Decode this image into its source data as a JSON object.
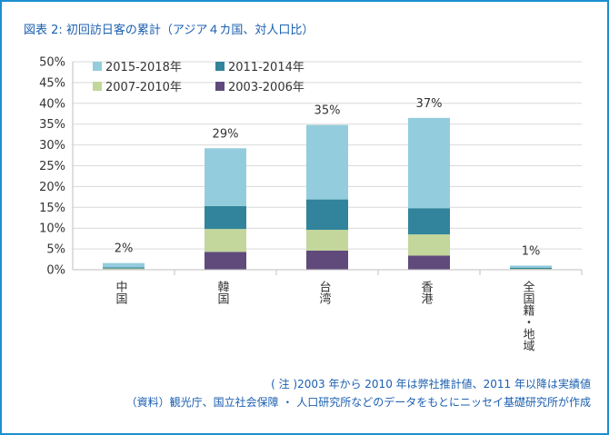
{
  "title": "図表 2: 初回訪日客の累計（アジア４カ国、対人口比）",
  "note": "( 注 )2003 年から 2010 年は弊社推計値、2011 年以降は実績値",
  "source": "（資料）観光庁、国立社会保障 ・ 人口研究所などのデータをもとにニッセイ基礎研究所が作成",
  "colors": {
    "2015-2018年": "#93cddd",
    "2011-2014年": "#31849b",
    "2007-2010年": "#c3d69b",
    "2003-2006年": "#604a7b",
    "frame": "#1b8ed0",
    "title_text": "#1b5fb0"
  },
  "chart_data": {
    "type": "bar",
    "stacked": true,
    "categories": [
      "中国",
      "韓国",
      "台湾",
      "香港",
      "全国籍・地域"
    ],
    "series": [
      {
        "name": "2003-2006年",
        "values": [
          0.1,
          4.3,
          4.6,
          3.4,
          0.1
        ]
      },
      {
        "name": "2007-2010年",
        "values": [
          0.2,
          5.5,
          5.0,
          5.1,
          0.1
        ]
      },
      {
        "name": "2011-2014年",
        "values": [
          0.3,
          5.5,
          7.3,
          6.3,
          0.3
        ]
      },
      {
        "name": "2015-2018年",
        "values": [
          1.0,
          13.9,
          17.9,
          21.7,
          0.5
        ]
      }
    ],
    "totals_labels": [
      "2%",
      "29%",
      "35%",
      "37%",
      "1%"
    ],
    "yticks": [
      "0%",
      "5%",
      "10%",
      "15%",
      "20%",
      "25%",
      "30%",
      "35%",
      "40%",
      "45%",
      "50%"
    ],
    "ylim": [
      0,
      50
    ],
    "grid": true,
    "legend_order": [
      "2015-2018年",
      "2011-2014年",
      "2007-2010年",
      "2003-2006年"
    ],
    "legend_position": "top-left"
  }
}
